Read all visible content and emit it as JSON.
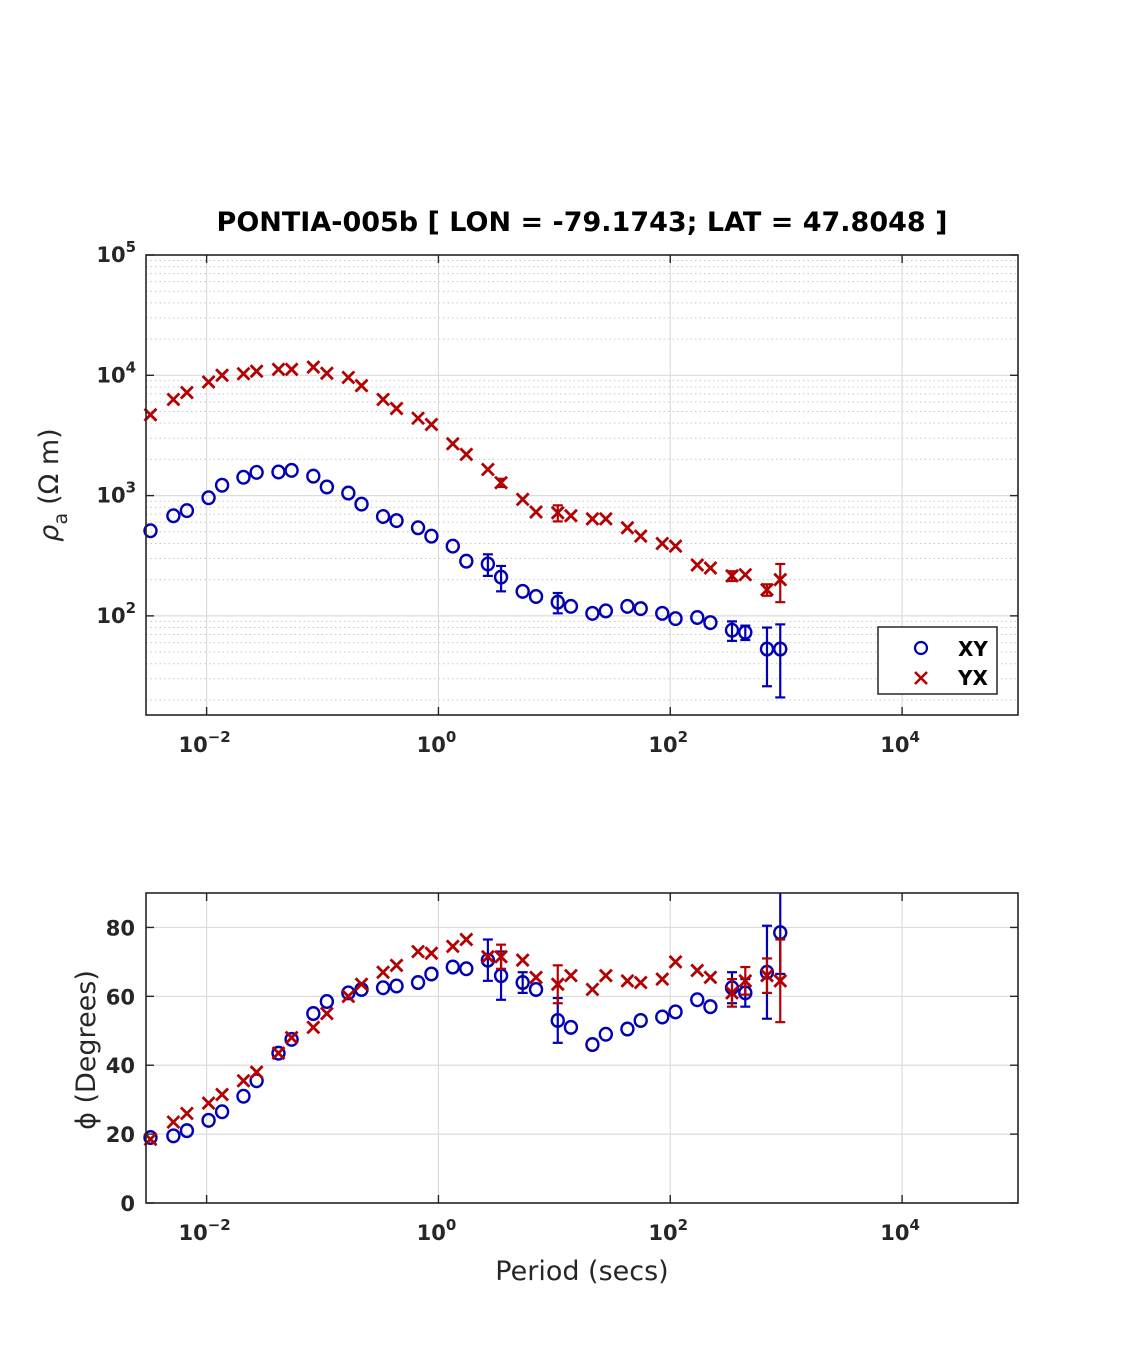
{
  "chart_data": [
    {
      "type": "scatter",
      "title": "PONTIA-005b [ LON = -79.1743; LAT = 47.8048 ]",
      "ylabel_symbol": "ρ",
      "ylabel_subscript": "a",
      "ylabel_units": "(Ω m)",
      "xlabel": "",
      "x_scale": "log",
      "y_scale": "log",
      "xlim": [
        0.003,
        100000
      ],
      "ylim": [
        15,
        100000
      ],
      "x_ticks": [
        {
          "value": 0.01,
          "base": "10",
          "exp": "−2"
        },
        {
          "value": 1,
          "base": "10",
          "exp": "0"
        },
        {
          "value": 100,
          "base": "10",
          "exp": "2"
        },
        {
          "value": 10000,
          "base": "10",
          "exp": "4"
        }
      ],
      "y_ticks": [
        {
          "value": 100,
          "base": "10",
          "exp": "2"
        },
        {
          "value": 1000,
          "base": "10",
          "exp": "3"
        },
        {
          "value": 10000,
          "base": "10",
          "exp": "4"
        },
        {
          "value": 100000,
          "base": "10",
          "exp": "5"
        }
      ],
      "grid": true,
      "minor_grid": "y",
      "legend": {
        "position": "bottom-right",
        "entries": [
          "XY",
          "YX"
        ]
      },
      "series": [
        {
          "name": "XY",
          "marker": "circle",
          "color": "#0000b4",
          "points": [
            [
              0.00328,
              510,
              0
            ],
            [
              0.00517,
              680,
              0
            ],
            [
              0.00676,
              750,
              0
            ],
            [
              0.0104,
              960,
              0
            ],
            [
              0.0136,
              1220,
              0
            ],
            [
              0.0208,
              1420,
              0
            ],
            [
              0.027,
              1560,
              0
            ],
            [
              0.0417,
              1570,
              0
            ],
            [
              0.0541,
              1620,
              0
            ],
            [
              0.0833,
              1450,
              0
            ],
            [
              0.109,
              1180,
              0
            ],
            [
              0.167,
              1050,
              0
            ],
            [
              0.217,
              850,
              0
            ],
            [
              0.333,
              670,
              0
            ],
            [
              0.435,
              620,
              0
            ],
            [
              0.667,
              540,
              0
            ],
            [
              0.87,
              460,
              0
            ],
            [
              1.33,
              380,
              0
            ],
            [
              1.74,
              285,
              0
            ],
            [
              2.67,
              270,
              55
            ],
            [
              3.47,
              210,
              50
            ],
            [
              5.33,
              160,
              0
            ],
            [
              6.95,
              145,
              0
            ],
            [
              10.7,
              130,
              25
            ],
            [
              13.9,
              120,
              0
            ],
            [
              21.3,
              105,
              0
            ],
            [
              27.8,
              110,
              0
            ],
            [
              42.7,
              120,
              0
            ],
            [
              55.6,
              115,
              0
            ],
            [
              85.3,
              105,
              0
            ],
            [
              111,
              95,
              0
            ],
            [
              171,
              97,
              0
            ],
            [
              222,
              88,
              0
            ],
            [
              341,
              76,
              14
            ],
            [
              444,
              73,
              10
            ],
            [
              683,
              53,
              27
            ],
            [
              889,
              53,
              32
            ]
          ]
        },
        {
          "name": "YX",
          "marker": "x",
          "color": "#b40000",
          "points": [
            [
              0.00328,
              4700,
              0
            ],
            [
              0.00517,
              6300,
              0
            ],
            [
              0.00676,
              7200,
              0
            ],
            [
              0.0104,
              8800,
              0
            ],
            [
              0.0136,
              10000,
              0
            ],
            [
              0.0208,
              10300,
              0
            ],
            [
              0.027,
              10800,
              0
            ],
            [
              0.0417,
              11200,
              0
            ],
            [
              0.0541,
              11200,
              0
            ],
            [
              0.0833,
              11700,
              0
            ],
            [
              0.109,
              10400,
              0
            ],
            [
              0.167,
              9600,
              0
            ],
            [
              0.217,
              8200,
              0
            ],
            [
              0.333,
              6300,
              0
            ],
            [
              0.435,
              5300,
              0
            ],
            [
              0.667,
              4400,
              0
            ],
            [
              0.87,
              3900,
              0
            ],
            [
              1.33,
              2700,
              0
            ],
            [
              1.74,
              2200,
              0
            ],
            [
              2.67,
              1650,
              0
            ],
            [
              3.47,
              1280,
              100
            ],
            [
              5.33,
              930,
              0
            ],
            [
              6.95,
              730,
              0
            ],
            [
              10.7,
              720,
              110
            ],
            [
              13.9,
              680,
              0
            ],
            [
              21.3,
              640,
              0
            ],
            [
              27.8,
              640,
              0
            ],
            [
              42.7,
              540,
              0
            ],
            [
              55.6,
              460,
              0
            ],
            [
              85.3,
              400,
              0
            ],
            [
              111,
              380,
              0
            ],
            [
              171,
              265,
              0
            ],
            [
              222,
              250,
              0
            ],
            [
              341,
              215,
              20
            ],
            [
              444,
              220,
              0
            ],
            [
              683,
              165,
              18
            ],
            [
              889,
              200,
              70
            ]
          ]
        }
      ]
    },
    {
      "type": "scatter",
      "title": "",
      "ylabel": "ϕ (Degrees)",
      "xlabel": "Period (secs)",
      "x_scale": "log",
      "y_scale": "linear",
      "xlim": [
        0.003,
        100000
      ],
      "ylim": [
        0,
        90
      ],
      "x_ticks": [
        {
          "value": 0.01,
          "base": "10",
          "exp": "−2"
        },
        {
          "value": 1,
          "base": "10",
          "exp": "0"
        },
        {
          "value": 100,
          "base": "10",
          "exp": "2"
        },
        {
          "value": 10000,
          "base": "10",
          "exp": "4"
        }
      ],
      "y_ticks": [
        {
          "value": 0,
          "label": "0"
        },
        {
          "value": 20,
          "label": "20"
        },
        {
          "value": 40,
          "label": "40"
        },
        {
          "value": 60,
          "label": "60"
        },
        {
          "value": 80,
          "label": "80"
        }
      ],
      "grid": true,
      "series": [
        {
          "name": "XY",
          "marker": "circle",
          "color": "#0000b4",
          "points": [
            [
              0.00328,
              19,
              0
            ],
            [
              0.00517,
              19.5,
              0
            ],
            [
              0.00676,
              21,
              0
            ],
            [
              0.0104,
              24,
              0
            ],
            [
              0.0136,
              26.5,
              0
            ],
            [
              0.0208,
              31,
              0
            ],
            [
              0.027,
              35.5,
              0
            ],
            [
              0.0417,
              43.5,
              0
            ],
            [
              0.0541,
              47.5,
              0
            ],
            [
              0.0833,
              55,
              0
            ],
            [
              0.109,
              58.5,
              0
            ],
            [
              0.167,
              61,
              0
            ],
            [
              0.217,
              62,
              0
            ],
            [
              0.333,
              62.5,
              0
            ],
            [
              0.435,
              63,
              0
            ],
            [
              0.667,
              64,
              0
            ],
            [
              0.87,
              66.5,
              0
            ],
            [
              1.33,
              68.5,
              0
            ],
            [
              1.74,
              68,
              0
            ],
            [
              2.67,
              70.5,
              6
            ],
            [
              3.47,
              66,
              7
            ],
            [
              5.33,
              64,
              3
            ],
            [
              6.95,
              62,
              0
            ],
            [
              10.7,
              53,
              6.5
            ],
            [
              13.9,
              51,
              0
            ],
            [
              21.3,
              46,
              0
            ],
            [
              27.8,
              49,
              0
            ],
            [
              42.7,
              50.5,
              0
            ],
            [
              55.6,
              53,
              0
            ],
            [
              85.3,
              54,
              0
            ],
            [
              111,
              55.5,
              0
            ],
            [
              171,
              59,
              0
            ],
            [
              222,
              57,
              0
            ],
            [
              341,
              62.5,
              4.5
            ],
            [
              444,
              61,
              4
            ],
            [
              683,
              67,
              13.5
            ],
            [
              889,
              78.5,
              12
            ]
          ]
        },
        {
          "name": "YX",
          "marker": "x",
          "color": "#b40000",
          "points": [
            [
              0.00328,
              18.5,
              0
            ],
            [
              0.00517,
              23.5,
              0
            ],
            [
              0.00676,
              26,
              0
            ],
            [
              0.0104,
              29,
              0
            ],
            [
              0.0136,
              31.5,
              0
            ],
            [
              0.0208,
              35.5,
              0
            ],
            [
              0.027,
              38,
              0
            ],
            [
              0.0417,
              43.5,
              0
            ],
            [
              0.0541,
              48,
              0
            ],
            [
              0.0833,
              51,
              0
            ],
            [
              0.109,
              55,
              0
            ],
            [
              0.167,
              60,
              0
            ],
            [
              0.217,
              63.5,
              0
            ],
            [
              0.333,
              67,
              0
            ],
            [
              0.435,
              69,
              0
            ],
            [
              0.667,
              73,
              0
            ],
            [
              0.87,
              72.5,
              0
            ],
            [
              1.33,
              74.5,
              0
            ],
            [
              1.74,
              76.5,
              0
            ],
            [
              2.67,
              71.5,
              0
            ],
            [
              3.47,
              71.5,
              3.5
            ],
            [
              5.33,
              70.5,
              0
            ],
            [
              6.95,
              65.5,
              0
            ],
            [
              10.7,
              63.5,
              5.5
            ],
            [
              13.9,
              66,
              0
            ],
            [
              21.3,
              62,
              0
            ],
            [
              27.8,
              66,
              0
            ],
            [
              42.7,
              64.5,
              0
            ],
            [
              55.6,
              64,
              0
            ],
            [
              85.3,
              65,
              0
            ],
            [
              111,
              70,
              0
            ],
            [
              171,
              67.5,
              0
            ],
            [
              222,
              65.5,
              0
            ],
            [
              341,
              61,
              4
            ],
            [
              444,
              64.5,
              4
            ],
            [
              683,
              66,
              5
            ],
            [
              889,
              64.5,
              12
            ]
          ]
        }
      ]
    }
  ]
}
